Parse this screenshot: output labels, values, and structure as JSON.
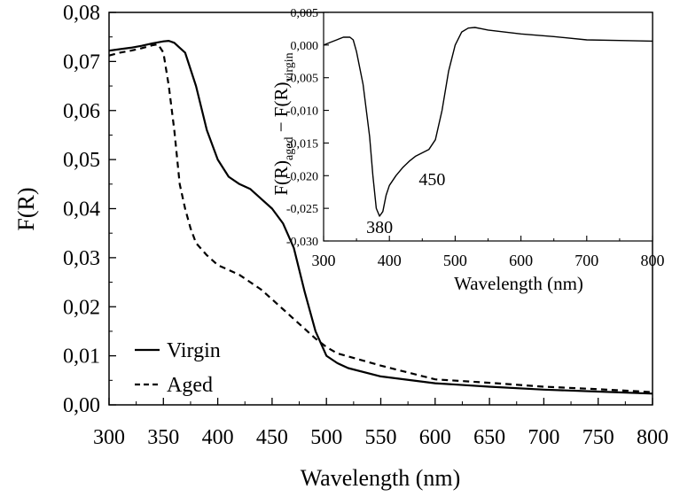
{
  "chart_data": [
    {
      "type": "line",
      "xlabel": "Wavelength (nm)",
      "ylabel": "F(R)",
      "xlim": [
        300,
        800
      ],
      "ylim": [
        0.0,
        0.08
      ],
      "xticks": [
        "300",
        "350",
        "400",
        "450",
        "500",
        "550",
        "600",
        "650",
        "700",
        "750",
        "800"
      ],
      "yticks": [
        "0,00",
        "0,01",
        "0,02",
        "0,03",
        "0,04",
        "0,05",
        "0,06",
        "0,07",
        "0,08"
      ],
      "legend_position": "bottom-left",
      "series": [
        {
          "name": "Virgin",
          "style": "solid",
          "x": [
            300,
            310,
            320,
            330,
            340,
            350,
            355,
            360,
            365,
            370,
            380,
            390,
            400,
            410,
            420,
            430,
            440,
            450,
            460,
            470,
            480,
            490,
            500,
            510,
            520,
            550,
            600,
            650,
            700,
            750,
            800
          ],
          "y": [
            0.0722,
            0.0725,
            0.0728,
            0.0732,
            0.0737,
            0.0741,
            0.0742,
            0.0738,
            0.0728,
            0.0718,
            0.065,
            0.056,
            0.05,
            0.0465,
            0.045,
            0.044,
            0.042,
            0.04,
            0.037,
            0.032,
            0.023,
            0.015,
            0.01,
            0.0085,
            0.0075,
            0.0058,
            0.0044,
            0.0037,
            0.0031,
            0.0027,
            0.0023
          ]
        },
        {
          "name": "Aged",
          "style": "dashed",
          "x": [
            300,
            310,
            320,
            330,
            340,
            345,
            350,
            355,
            360,
            365,
            370,
            375,
            380,
            390,
            400,
            410,
            420,
            430,
            440,
            450,
            460,
            470,
            480,
            490,
            500,
            510,
            550,
            600,
            650,
            700,
            750,
            800
          ],
          "y": [
            0.0712,
            0.0718,
            0.0722,
            0.0727,
            0.0733,
            0.0735,
            0.0718,
            0.065,
            0.056,
            0.045,
            0.04,
            0.036,
            0.033,
            0.0305,
            0.0285,
            0.0275,
            0.0265,
            0.025,
            0.0235,
            0.0215,
            0.0195,
            0.0175,
            0.0155,
            0.0135,
            0.0118,
            0.0105,
            0.008,
            0.0052,
            0.0045,
            0.0037,
            0.0032,
            0.0026
          ]
        }
      ]
    },
    {
      "type": "line",
      "xlabel": "Wavelength (nm)",
      "ylabel": "F(R)aged − F(R)virgin",
      "ylabel_main_a": "F(R)",
      "ylabel_sub_a": "aged",
      "ylabel_mid": " − F(R)",
      "ylabel_sub_b": "virgin",
      "xlim": [
        300,
        800
      ],
      "ylim": [
        -0.03,
        0.005
      ],
      "xticks": [
        "300",
        "400",
        "500",
        "600",
        "700",
        "800"
      ],
      "yticks": [
        "-0,030",
        "-0,025",
        "-0,020",
        "-0,015",
        "-0,010",
        "-0,005",
        "0,000",
        "0,005"
      ],
      "annotations": [
        {
          "text": "380",
          "x": 385,
          "y": -0.0278
        },
        {
          "text": "450",
          "x": 465,
          "y": -0.0205
        }
      ],
      "series": [
        {
          "style": "solid",
          "x": [
            300,
            310,
            320,
            330,
            340,
            345,
            350,
            360,
            370,
            375,
            380,
            385,
            390,
            395,
            400,
            410,
            420,
            430,
            440,
            450,
            460,
            470,
            480,
            490,
            500,
            510,
            520,
            530,
            540,
            550,
            600,
            650,
            700,
            750,
            800
          ],
          "y": [
            0.0,
            0.0004,
            0.0008,
            0.0012,
            0.0012,
            0.0008,
            -0.001,
            -0.006,
            -0.014,
            -0.02,
            -0.025,
            -0.0262,
            -0.0255,
            -0.023,
            -0.0215,
            -0.02,
            -0.0188,
            -0.0178,
            -0.017,
            -0.0165,
            -0.016,
            -0.0145,
            -0.01,
            -0.004,
            0.0,
            0.002,
            0.0026,
            0.0027,
            0.0025,
            0.0023,
            0.0017,
            0.0013,
            0.0008,
            0.0007,
            0.0006
          ]
        }
      ]
    }
  ],
  "legend": {
    "virgin_label": "Virgin",
    "aged_label": "Aged"
  }
}
